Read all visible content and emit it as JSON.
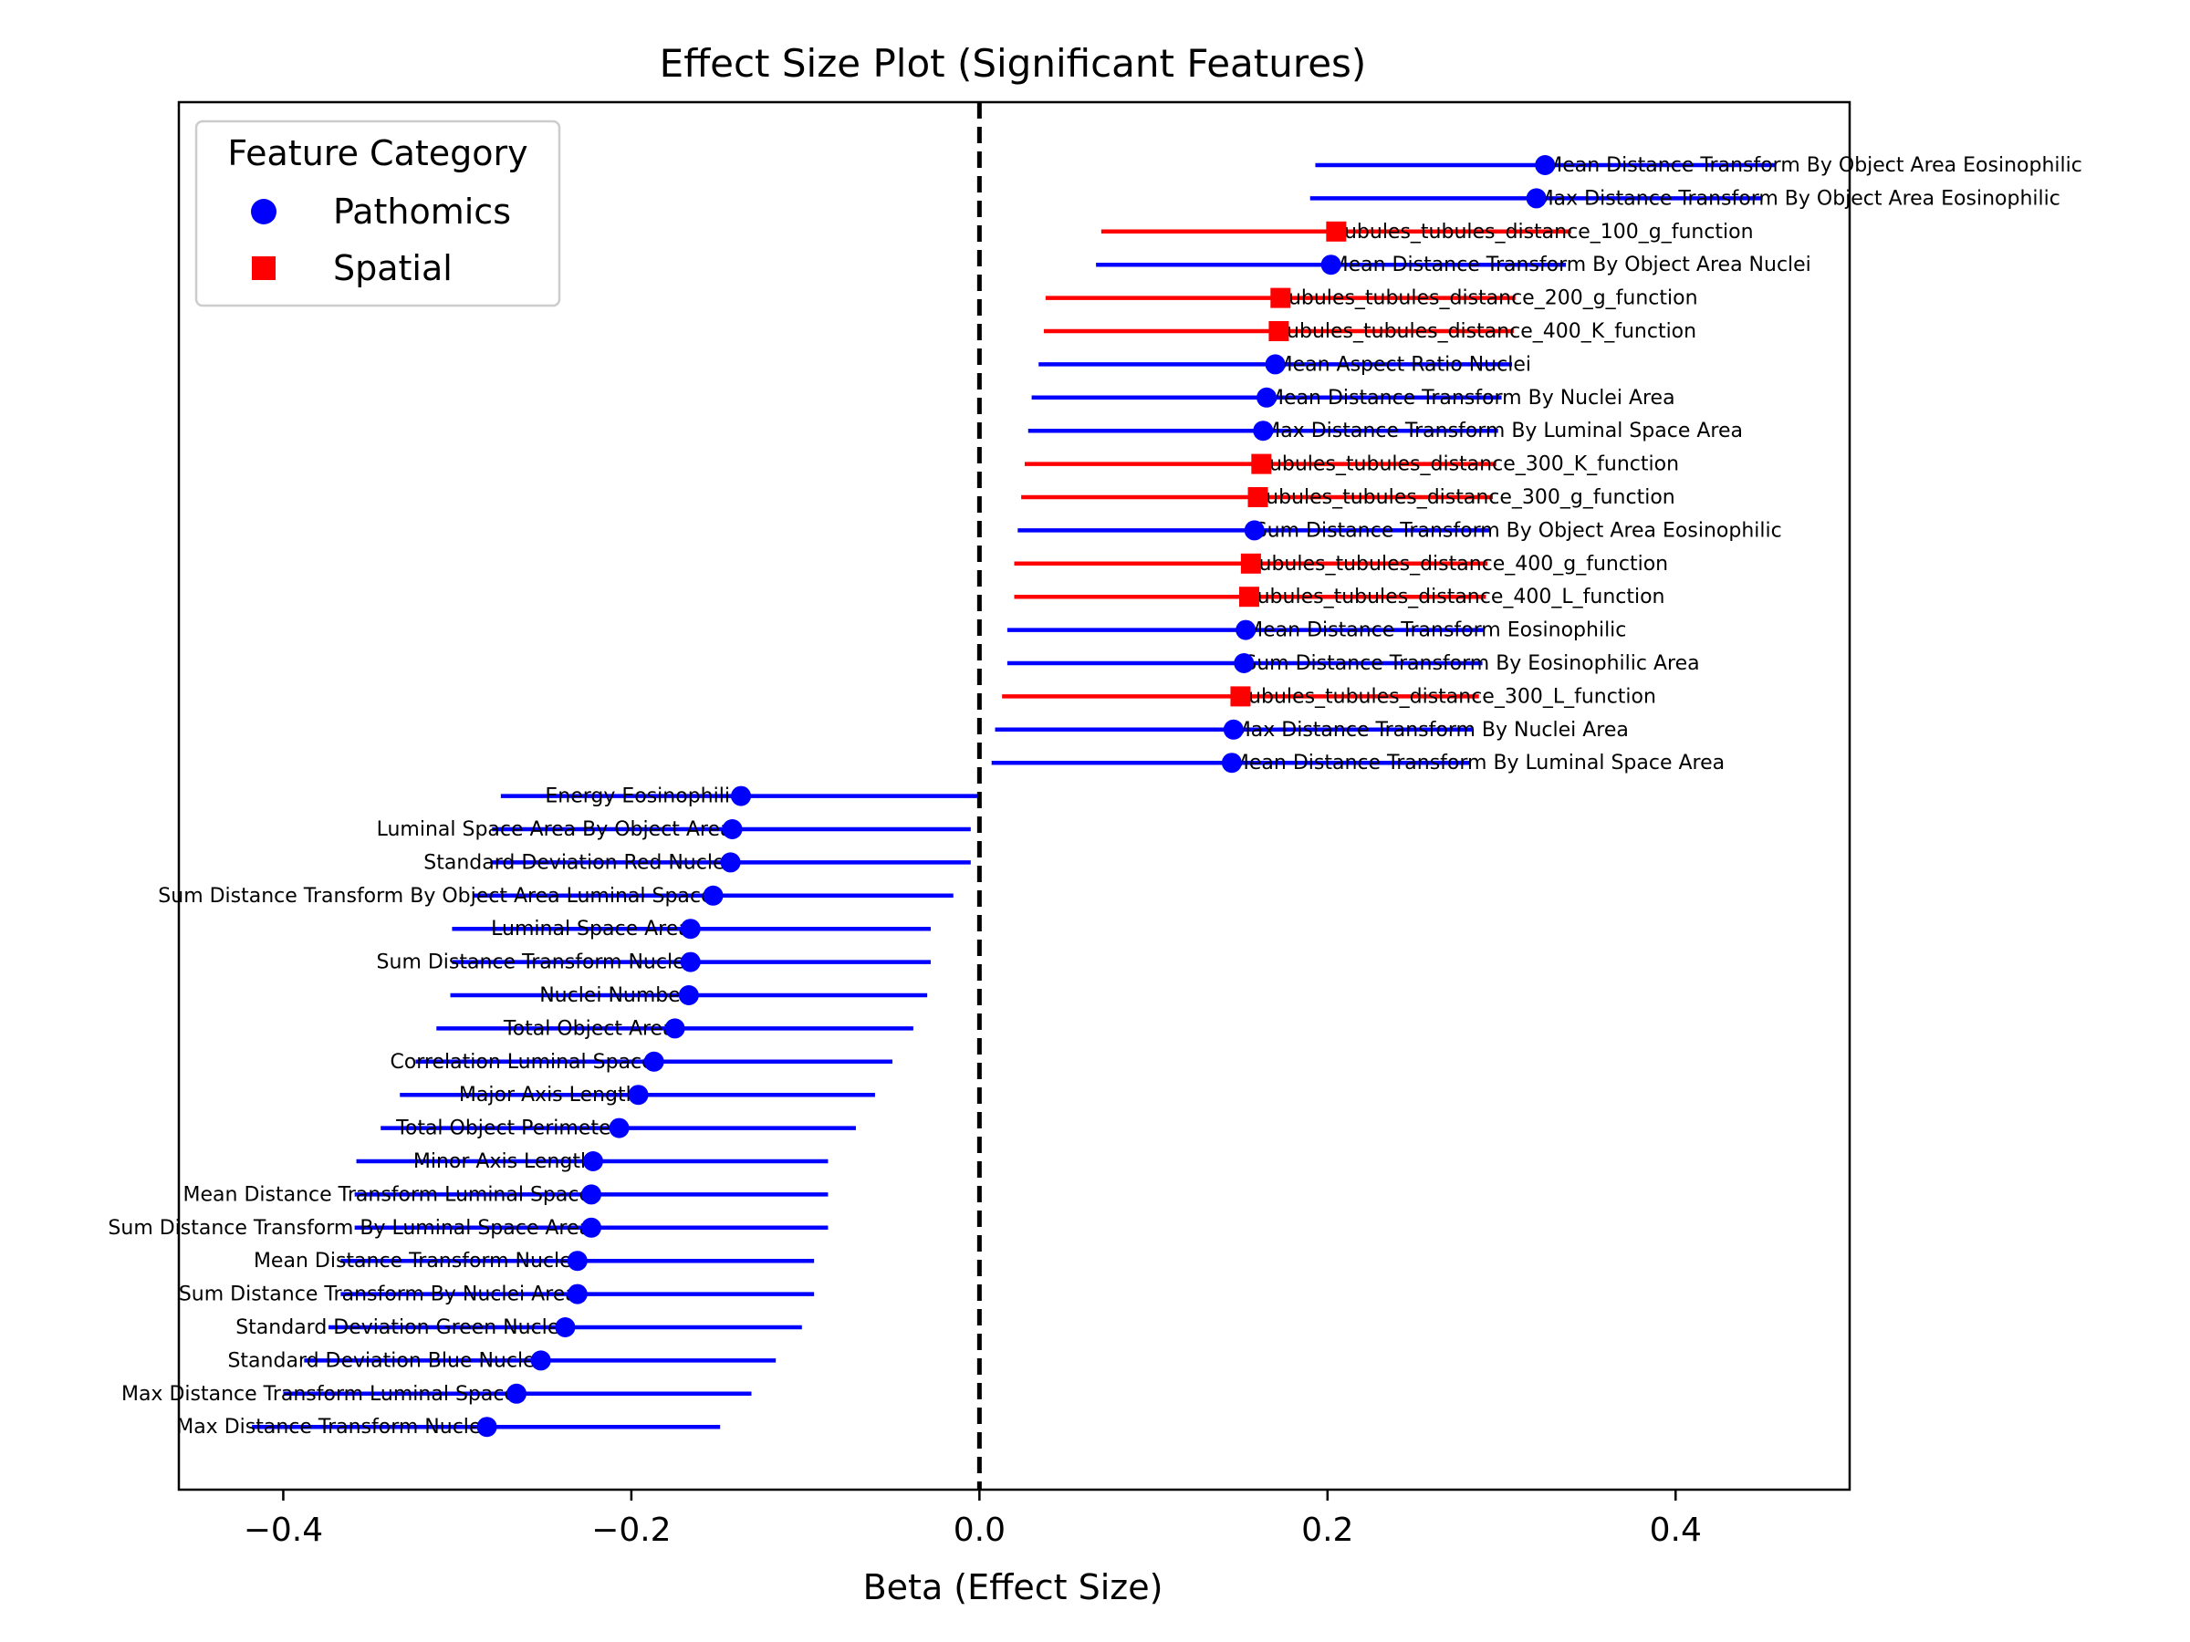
{
  "chart_data": {
    "type": "scatter",
    "title": "Effect Size Plot (Significant Features)",
    "xlabel": "Beta (Effect Size)",
    "ylabel": "",
    "xlim": [
      -0.46,
      0.5
    ],
    "xticks": [
      -0.4,
      -0.2,
      0.0,
      0.2,
      0.4
    ],
    "xtick_labels": [
      "−0.4",
      "−0.2",
      "0.0",
      "0.2",
      "0.4"
    ],
    "reference_line": {
      "x": 0.0,
      "style": "dashed",
      "color": "#000000"
    },
    "grid": false,
    "legend": {
      "title": "Feature Category",
      "placement": "top-left",
      "entries": [
        {
          "label": "Pathomics",
          "marker": "circle",
          "color": "#0000ff"
        },
        {
          "label": "Spatial",
          "marker": "square",
          "color": "#ff0000"
        }
      ]
    },
    "points": [
      {
        "label": "Mean Distance Transform By Object Area Eosinophilic",
        "beta": 0.325,
        "ci": [
          0.193,
          0.457
        ],
        "category": "Pathomics"
      },
      {
        "label": "Max Distance Transform By Object Area Eosinophilic",
        "beta": 0.32,
        "ci": [
          0.19,
          0.45
        ],
        "category": "Pathomics"
      },
      {
        "label": "tubules_tubules_distance_100_g_function",
        "beta": 0.205,
        "ci": [
          0.07,
          0.34
        ],
        "category": "Spatial"
      },
      {
        "label": "Mean Distance Transform By Object Area Nuclei",
        "beta": 0.202,
        "ci": [
          0.067,
          0.337
        ],
        "category": "Pathomics"
      },
      {
        "label": "tubules_tubules_distance_200_g_function",
        "beta": 0.173,
        "ci": [
          0.038,
          0.308
        ],
        "category": "Spatial"
      },
      {
        "label": "tubules_tubules_distance_400_K_function",
        "beta": 0.172,
        "ci": [
          0.037,
          0.307
        ],
        "category": "Spatial"
      },
      {
        "label": "Mean Aspect Ratio Nuclei",
        "beta": 0.17,
        "ci": [
          0.034,
          0.306
        ],
        "category": "Pathomics"
      },
      {
        "label": "Mean Distance Transform By Nuclei Area",
        "beta": 0.165,
        "ci": [
          0.03,
          0.3
        ],
        "category": "Pathomics"
      },
      {
        "label": "Max Distance Transform By Luminal Space Area",
        "beta": 0.163,
        "ci": [
          0.028,
          0.298
        ],
        "category": "Pathomics"
      },
      {
        "label": "tubules_tubules_distance_300_K_function",
        "beta": 0.162,
        "ci": [
          0.026,
          0.297
        ],
        "category": "Spatial"
      },
      {
        "label": "tubules_tubules_distance_300_g_function",
        "beta": 0.16,
        "ci": [
          0.024,
          0.295
        ],
        "category": "Spatial"
      },
      {
        "label": "Sum Distance Transform By Object Area Eosinophilic",
        "beta": 0.158,
        "ci": [
          0.022,
          0.293
        ],
        "category": "Pathomics"
      },
      {
        "label": "tubules_tubules_distance_400_g_function",
        "beta": 0.156,
        "ci": [
          0.02,
          0.292
        ],
        "category": "Spatial"
      },
      {
        "label": "tubules_tubules_distance_400_L_function",
        "beta": 0.155,
        "ci": [
          0.02,
          0.291
        ],
        "category": "Spatial"
      },
      {
        "label": "Mean Distance Transform Eosinophilic",
        "beta": 0.153,
        "ci": [
          0.016,
          0.29
        ],
        "category": "Pathomics"
      },
      {
        "label": "Sum Distance Transform By Eosinophilic Area",
        "beta": 0.152,
        "ci": [
          0.016,
          0.289
        ],
        "category": "Pathomics"
      },
      {
        "label": "tubules_tubules_distance_300_L_function",
        "beta": 0.15,
        "ci": [
          0.013,
          0.287
        ],
        "category": "Spatial"
      },
      {
        "label": "Max Distance Transform By Nuclei Area",
        "beta": 0.146,
        "ci": [
          0.009,
          0.283
        ],
        "category": "Pathomics"
      },
      {
        "label": "Mean Distance Transform By Luminal Space Area",
        "beta": 0.145,
        "ci": [
          0.007,
          0.282
        ],
        "category": "Pathomics"
      },
      {
        "label": "Energy Eosinophilic",
        "beta": -0.137,
        "ci": [
          -0.275,
          0.001
        ],
        "category": "Pathomics"
      },
      {
        "label": "Luminal Space Area By Object Area",
        "beta": -0.142,
        "ci": [
          -0.28,
          -0.005
        ],
        "category": "Pathomics"
      },
      {
        "label": "Standard Deviation Red Nuclei",
        "beta": -0.143,
        "ci": [
          -0.281,
          -0.005
        ],
        "category": "Pathomics"
      },
      {
        "label": "Sum Distance Transform By Object Area Luminal Space",
        "beta": -0.153,
        "ci": [
          -0.291,
          -0.015
        ],
        "category": "Pathomics"
      },
      {
        "label": "Luminal Space Area",
        "beta": -0.166,
        "ci": [
          -0.303,
          -0.028
        ],
        "category": "Pathomics"
      },
      {
        "label": "Sum Distance Transform Nuclei",
        "beta": -0.166,
        "ci": [
          -0.303,
          -0.028
        ],
        "category": "Pathomics"
      },
      {
        "label": "Nuclei Number",
        "beta": -0.167,
        "ci": [
          -0.304,
          -0.03
        ],
        "category": "Pathomics"
      },
      {
        "label": "Total Object Area",
        "beta": -0.175,
        "ci": [
          -0.312,
          -0.038
        ],
        "category": "Pathomics"
      },
      {
        "label": "Correlation Luminal Space",
        "beta": -0.187,
        "ci": [
          -0.324,
          -0.05
        ],
        "category": "Pathomics"
      },
      {
        "label": "Major Axis Length",
        "beta": -0.196,
        "ci": [
          -0.333,
          -0.06
        ],
        "category": "Pathomics"
      },
      {
        "label": "Total Object Perimeter",
        "beta": -0.207,
        "ci": [
          -0.344,
          -0.071
        ],
        "category": "Pathomics"
      },
      {
        "label": "Minor Axis Length",
        "beta": -0.222,
        "ci": [
          -0.358,
          -0.087
        ],
        "category": "Pathomics"
      },
      {
        "label": "Mean Distance Transform Luminal Space",
        "beta": -0.223,
        "ci": [
          -0.359,
          -0.087
        ],
        "category": "Pathomics"
      },
      {
        "label": "Sum Distance Transform By Luminal Space Area",
        "beta": -0.223,
        "ci": [
          -0.359,
          -0.087
        ],
        "category": "Pathomics"
      },
      {
        "label": "Mean Distance Transform Nuclei",
        "beta": -0.231,
        "ci": [
          -0.367,
          -0.095
        ],
        "category": "Pathomics"
      },
      {
        "label": "Sum Distance Transform By Nuclei Area",
        "beta": -0.231,
        "ci": [
          -0.367,
          -0.095
        ],
        "category": "Pathomics"
      },
      {
        "label": "Standard Deviation Green Nuclei",
        "beta": -0.238,
        "ci": [
          -0.374,
          -0.102
        ],
        "category": "Pathomics"
      },
      {
        "label": "Standard Deviation Blue Nuclei",
        "beta": -0.252,
        "ci": [
          -0.388,
          -0.117
        ],
        "category": "Pathomics"
      },
      {
        "label": "Max Distance Transform Luminal Space",
        "beta": -0.266,
        "ci": [
          -0.4,
          -0.131
        ],
        "category": "Pathomics"
      },
      {
        "label": "Max Distance Transform Nuclei",
        "beta": -0.283,
        "ci": [
          -0.418,
          -0.149
        ],
        "category": "Pathomics"
      }
    ]
  }
}
